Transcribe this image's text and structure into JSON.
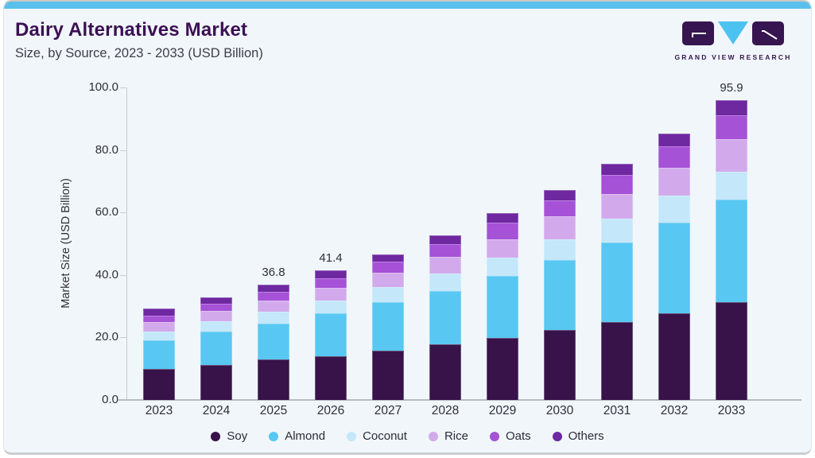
{
  "page": {
    "title": "Dairy Alternatives Market",
    "subtitle": "Size, by Source, 2023 - 2033 (USD Billion)"
  },
  "logo": {
    "text": "GRAND VIEW RESEARCH"
  },
  "colors": {
    "accent_strip": "#5bbfec",
    "card_background": "#f0f6fa",
    "title_purple": "#3b1053",
    "logo_purple": "#371550",
    "logo_blue": "#4cc2f1",
    "axis_line": "#c8ccd4"
  },
  "chart_data": {
    "type": "bar",
    "stacked": true,
    "title": "Dairy Alternatives Market Size, by Source, 2023 - 2033 (USD Billion)",
    "categories": [
      "2023",
      "2024",
      "2025",
      "2026",
      "2027",
      "2028",
      "2029",
      "2030",
      "2031",
      "2032",
      "2033"
    ],
    "series": [
      {
        "name": "Soy",
        "color": "#371349",
        "values": [
          10.0,
          11.2,
          12.9,
          14.1,
          15.9,
          17.7,
          19.9,
          22.3,
          25.0,
          27.8,
          31.2
        ]
      },
      {
        "name": "Almond",
        "color": "#58c7f2",
        "values": [
          9.2,
          10.6,
          11.6,
          13.6,
          15.4,
          17.2,
          19.8,
          22.5,
          25.4,
          29.0,
          32.9
        ]
      },
      {
        "name": "Coconut",
        "color": "#c4e7fa",
        "values": [
          2.8,
          3.3,
          3.7,
          4.0,
          4.8,
          5.5,
          5.9,
          6.6,
          7.6,
          8.5,
          9.0
        ]
      },
      {
        "name": "Rice",
        "color": "#d2aaec",
        "values": [
          2.9,
          3.4,
          3.6,
          4.2,
          4.7,
          5.5,
          5.8,
          7.4,
          7.9,
          9.0,
          10.4
        ]
      },
      {
        "name": "Oats",
        "color": "#a552d6",
        "values": [
          2.2,
          2.4,
          2.8,
          3.1,
          3.4,
          4.0,
          5.4,
          5.1,
          6.0,
          6.9,
          7.6
        ]
      },
      {
        "name": "Others",
        "color": "#6e28a0",
        "values": [
          2.2,
          1.9,
          2.2,
          2.4,
          2.4,
          2.9,
          3.1,
          3.3,
          3.8,
          4.0,
          4.8
        ]
      }
    ],
    "totals": [
      29.3,
      32.8,
      36.8,
      41.4,
      46.6,
      52.8,
      59.9,
      67.2,
      75.7,
      85.2,
      95.9
    ],
    "bar_labels": [
      "",
      "",
      "36.8",
      "41.4",
      "",
      "",
      "",
      "",
      "",
      "",
      "95.9"
    ],
    "xlabel": "",
    "ylabel": "Market Size (USD Billion)",
    "ylim": [
      0,
      100
    ],
    "yticks": [
      "0.0",
      "20.0",
      "40.0",
      "60.0",
      "80.0",
      "100.0"
    ],
    "grid": false,
    "legend_position": "bottom"
  }
}
